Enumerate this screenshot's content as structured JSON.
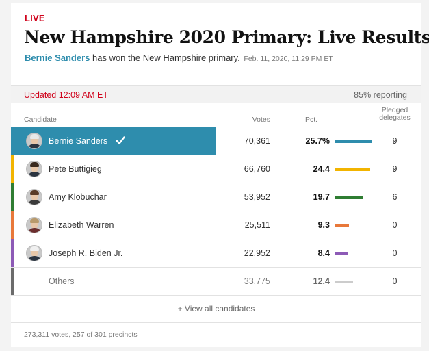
{
  "header": {
    "kicker": "LIVE",
    "headline": "New Hampshire 2020 Primary: Live Results",
    "summary": {
      "winner_name": "Bernie Sanders",
      "text": " has won the New Hampshire primary.",
      "timestamp": "Feb. 11, 2020, 11:29 PM ET"
    }
  },
  "status": {
    "updated": "Updated 12:09 AM ET",
    "reporting": "85% reporting"
  },
  "columns": {
    "candidate": "Candidate",
    "votes": "Votes",
    "pct": "Pct.",
    "delegates_line1": "Pledged",
    "delegates_line2": "delegates"
  },
  "colors": {
    "sanders": "#2e8dad",
    "buttigieg": "#f2b400",
    "klobuchar": "#2f7d32",
    "warren": "#e8783a",
    "biden": "#8d5ab6",
    "others": "#6b6b6b",
    "others_bar": "#cccccc",
    "live_red": "#d0021b"
  },
  "candidates": [
    {
      "name": "Bernie Sanders",
      "votes": "70,361",
      "pct": "25.7%",
      "pct_value": 25.7,
      "delegates": "9",
      "winner": true,
      "icon": "check-icon"
    },
    {
      "name": "Pete Buttigieg",
      "votes": "66,760",
      "pct": "24.4",
      "pct_value": 24.4,
      "delegates": "9"
    },
    {
      "name": "Amy Klobuchar",
      "votes": "53,952",
      "pct": "19.7",
      "pct_value": 19.7,
      "delegates": "6"
    },
    {
      "name": "Elizabeth Warren",
      "votes": "25,511",
      "pct": "9.3",
      "pct_value": 9.3,
      "delegates": "0"
    },
    {
      "name": "Joseph R. Biden Jr.",
      "votes": "22,952",
      "pct": "8.4",
      "pct_value": 8.4,
      "delegates": "0"
    },
    {
      "name": "Others",
      "votes": "33,775",
      "pct": "12.4",
      "pct_value": 12.4,
      "delegates": "0"
    }
  ],
  "view_all": "+ View all candidates",
  "footer": "273,311 votes, 257 of 301 precincts"
}
